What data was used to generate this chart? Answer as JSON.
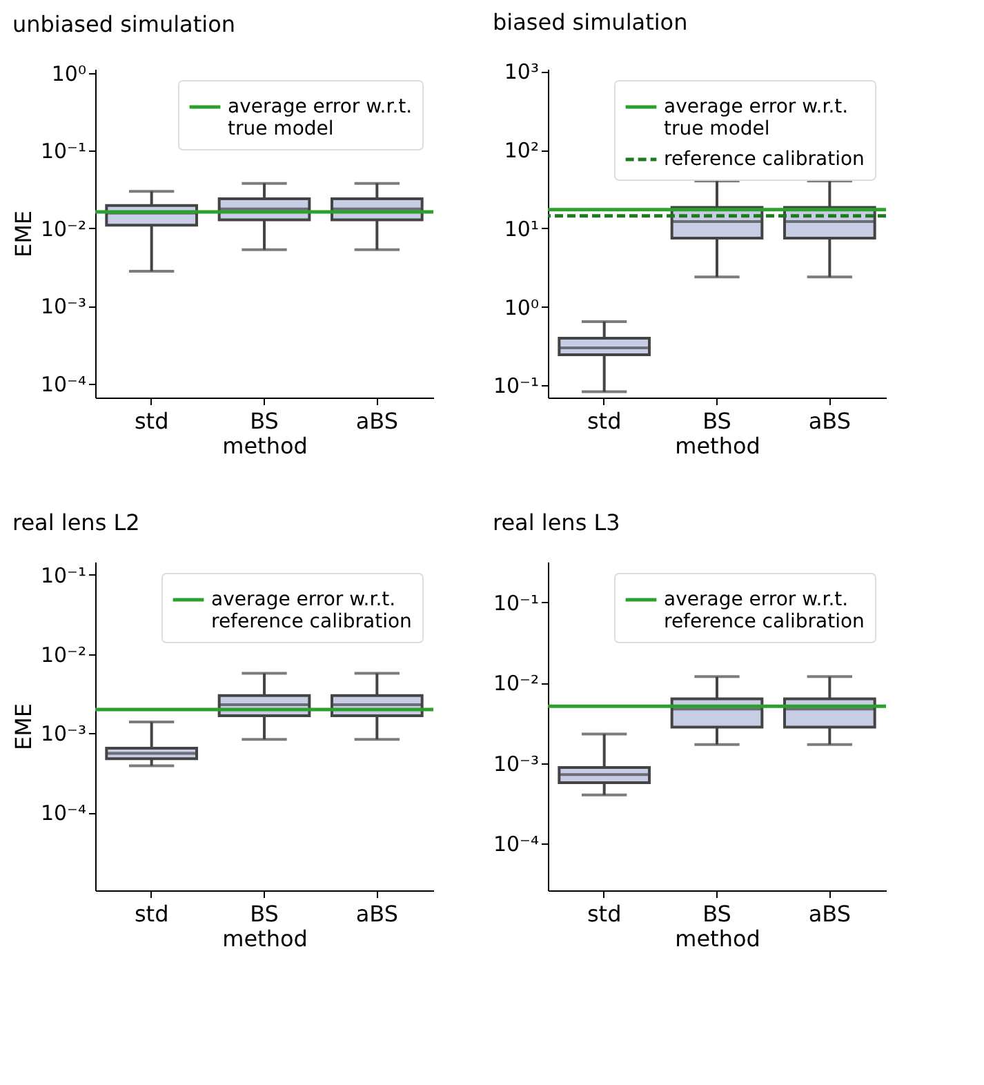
{
  "chart_data": [
    {
      "type": "box",
      "title": "unbiased simulation",
      "xlabel": "method",
      "ylabel": "EME",
      "categories": [
        "std",
        "BS",
        "aBS"
      ],
      "colors": [
        "#c8cde6",
        "#c8cde6",
        "#c8cde6"
      ],
      "boxes": [
        {
          "low": 0.0028,
          "q1": 0.011,
          "median": 0.0157,
          "q3": 0.0197,
          "high": 0.03
        },
        {
          "low": 0.0053,
          "q1": 0.0129,
          "median": 0.0178,
          "q3": 0.024,
          "high": 0.038
        },
        {
          "low": 0.0053,
          "q1": 0.0129,
          "median": 0.0178,
          "q3": 0.024,
          "high": 0.038
        }
      ],
      "log": true,
      "ylim": [
        6.6e-05,
        1.13
      ],
      "yticks": [
        {
          "value": 0.0001,
          "label": "10⁻⁴"
        },
        {
          "value": 0.001,
          "label": "10⁻³"
        },
        {
          "value": 0.01,
          "label": "10⁻²"
        },
        {
          "value": 0.1,
          "label": "10⁻¹"
        },
        {
          "value": 1,
          "label": "10⁰"
        }
      ],
      "ref_lines": [
        {
          "axis": "y",
          "value": 0.0163,
          "label": "average error w.r.t. true model",
          "color": "#2ca02c",
          "line_style": "solid"
        }
      ],
      "legend": "top right"
    },
    {
      "type": "box",
      "title": "biased simulation",
      "xlabel": "method",
      "categories": [
        "std",
        "BS",
        "aBS"
      ],
      "colors": [
        "#c8cde6",
        "#c8cde6",
        "#c8cde6"
      ],
      "boxes": [
        {
          "low": 0.083,
          "q1": 0.245,
          "median": 0.3,
          "q3": 0.4,
          "high": 0.65
        },
        {
          "low": 2.4,
          "q1": 7.5,
          "median": 12.2,
          "q3": 18.5,
          "high": 40
        },
        {
          "low": 2.4,
          "q1": 7.5,
          "median": 12.2,
          "q3": 18.5,
          "high": 40
        }
      ],
      "log": true,
      "ylim": [
        0.07,
        1070
      ],
      "yticks": [
        {
          "value": 0.1,
          "label": "10⁻¹"
        },
        {
          "value": 1,
          "label": "10⁰"
        },
        {
          "value": 10,
          "label": "10¹"
        },
        {
          "value": 100,
          "label": "10²"
        },
        {
          "value": 1000,
          "label": "10³"
        }
      ],
      "ref_lines": [
        {
          "axis": "y",
          "value": 17.3,
          "label": "average error w.r.t. true model",
          "color": "#2ca02c",
          "line_style": "solid"
        },
        {
          "axis": "y",
          "value": 14.4,
          "label": "reference calibration",
          "color": "#1f7a1f",
          "line_style": "dashed"
        }
      ],
      "legend": "top right"
    },
    {
      "type": "box",
      "title": "real lens L2",
      "xlabel": "method",
      "ylabel": "EME",
      "categories": [
        "std",
        "BS",
        "aBS"
      ],
      "colors": [
        "#c8cde6",
        "#c8cde6",
        "#c8cde6"
      ],
      "boxes": [
        {
          "low": 0.00039,
          "q1": 0.00048,
          "median": 0.00056,
          "q3": 0.00065,
          "high": 0.00139
        },
        {
          "low": 0.00084,
          "q1": 0.00167,
          "median": 0.0023,
          "q3": 0.003,
          "high": 0.0057
        },
        {
          "low": 0.00084,
          "q1": 0.00167,
          "median": 0.0023,
          "q3": 0.003,
          "high": 0.0057
        }
      ],
      "log": true,
      "ylim": [
        1.05e-05,
        0.145
      ],
      "yticks": [
        {
          "value": 0.0001,
          "label": "10⁻⁴"
        },
        {
          "value": 0.001,
          "label": "10⁻³"
        },
        {
          "value": 0.01,
          "label": "10⁻²"
        },
        {
          "value": 0.1,
          "label": "10⁻¹"
        }
      ],
      "ref_lines": [
        {
          "axis": "y",
          "value": 0.002,
          "label": "average error w.r.t. reference calibration",
          "color": "#2ca02c",
          "line_style": "solid"
        }
      ],
      "legend": "top right"
    },
    {
      "type": "box",
      "title": "real lens L3",
      "xlabel": "method",
      "categories": [
        "std",
        "BS",
        "aBS"
      ],
      "colors": [
        "#c8cde6",
        "#c8cde6",
        "#c8cde6"
      ],
      "boxes": [
        {
          "low": 0.0004,
          "q1": 0.00057,
          "median": 0.00072,
          "q3": 0.00088,
          "high": 0.0023
        },
        {
          "low": 0.0017,
          "q1": 0.0028,
          "median": 0.0047,
          "q3": 0.0063,
          "high": 0.0119
        },
        {
          "low": 0.0017,
          "q1": 0.0028,
          "median": 0.0047,
          "q3": 0.0063,
          "high": 0.0119
        }
      ],
      "log": true,
      "ylim": [
        2.6e-05,
        0.32
      ],
      "yticks": [
        {
          "value": 0.0001,
          "label": "10⁻⁴"
        },
        {
          "value": 0.001,
          "label": "10⁻³"
        },
        {
          "value": 0.01,
          "label": "10⁻²"
        },
        {
          "value": 0.1,
          "label": "10⁻¹"
        }
      ],
      "ref_lines": [
        {
          "axis": "y",
          "value": 0.0051,
          "label": "average error w.r.t. reference calibration",
          "color": "#2ca02c",
          "line_style": "solid"
        }
      ],
      "legend": "top right"
    }
  ]
}
